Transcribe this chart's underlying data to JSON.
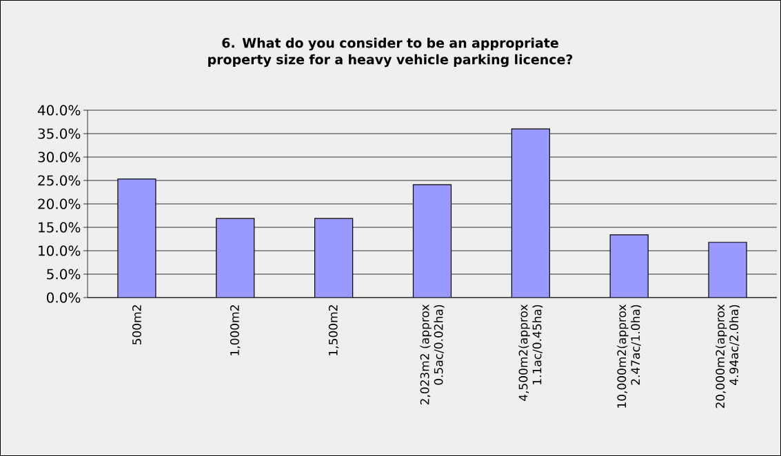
{
  "chart_data": {
    "type": "bar",
    "title": "6. What do you consider to be an appropriate property size for a heavy vehicle parking licence?",
    "categories": [
      "500m2",
      "1,000m2",
      "1,500m2",
      "2,023m2 (approx 0.5ac/0.02ha)",
      "4,500m2(approx 1.1ac/0.45ha)",
      "10,000m2(approx 2.47ac/1.0ha)",
      "20,000m2(approx 4.94ac/2.0ha)"
    ],
    "values": [
      25.3,
      16.9,
      16.9,
      24.1,
      36.0,
      13.4,
      11.8
    ],
    "color": "#9999ff",
    "ylim": [
      0,
      40
    ],
    "yticks": [
      {
        "value": 0,
        "label": "0.0%"
      },
      {
        "value": 5,
        "label": "5.0%"
      },
      {
        "value": 10,
        "label": "10.0%"
      },
      {
        "value": 15,
        "label": "15.0%"
      },
      {
        "value": 20,
        "label": "20.0%"
      },
      {
        "value": 25,
        "label": "25.0%"
      },
      {
        "value": 30,
        "label": "30.0%"
      },
      {
        "value": 35,
        "label": "35.0%"
      },
      {
        "value": 40,
        "label": "40.0%"
      }
    ],
    "grid": "y"
  }
}
